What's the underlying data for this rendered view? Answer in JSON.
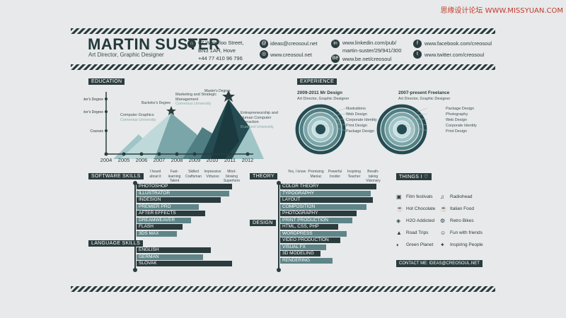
{
  "watermark": "思缘设计论坛 WWW.MISSYUAN.COM",
  "header": {
    "name": "MARTIN SUSTER",
    "role": "Art Director, Graphic Designer",
    "address": [
      "67 Waterloo Street,",
      "BN3 1AH, Hove",
      "+44 77 410 96 796"
    ],
    "email": "ideas@creosoul.net",
    "web": "www.creosoul.net",
    "linkedin": [
      "www.linkedin.com/pub/",
      "martin-suster/29/941/300"
    ],
    "behance": "www.be.net/creosoul",
    "facebook": "www.facebook.com/creosoul",
    "twitter": "www.twitter.com/creosoul"
  },
  "education": {
    "label": "EDUCATION",
    "y_labels": [
      "Master's Degree",
      "Bachelor's Degree",
      "Courses"
    ],
    "years": [
      "2004",
      "2005",
      "2006",
      "2007",
      "2008",
      "2009",
      "2010",
      "2011",
      "2012"
    ],
    "annotations": {
      "bachelor": "Bachelor's Degree",
      "master": "Master's Degree",
      "computer_graphics": "Computer Graphics",
      "computer_graphics_sub": "Comenius University",
      "marketing": "Marketing and Strategic Management",
      "marketing_sub": "Comenius University",
      "entrepreneurship": "Entrepreneurship and Human Computer Interaction",
      "entrepreneurship_sub": "Bradford University"
    }
  },
  "experience": {
    "label": "EXPERIENCE",
    "job1_title": "2009-2011 Mr Design",
    "job1_role": "Art Director, Graphic Designer",
    "job1_items": [
      "Illustrations",
      "Web Design",
      "Corporate Identity",
      "Print Design",
      "Package Design"
    ],
    "job2_title": "2007-present Freelance",
    "job2_role": "Art Director, Graphic Designer",
    "job2_items": [
      "Package Design",
      "Photography",
      "Web Design",
      "Corporate Identity",
      "Print Design"
    ]
  },
  "software": {
    "label": "SOFTWARE SKILLS",
    "scale": [
      "I heard about it",
      "Fast-learning Talent",
      "Skilled Craftsman",
      "Impressive Virtuoso",
      "Mind-blowing Superhero"
    ],
    "items": [
      {
        "name": "PHOTOSHOP",
        "value": 95
      },
      {
        "name": "ILLUSTRATOR",
        "value": 92
      },
      {
        "name": "INDESIGN",
        "value": 84
      },
      {
        "name": "PREMIER PRO",
        "value": 62
      },
      {
        "name": "AFTER EFFECTS",
        "value": 68
      },
      {
        "name": "DREAMWEAVER",
        "value": 54
      },
      {
        "name": "FLASH",
        "value": 46
      },
      {
        "name": "3DS MAX",
        "value": 40
      }
    ]
  },
  "language": {
    "label": "LANGUAGE SKILLS",
    "items": [
      {
        "name": "ENGLISH",
        "value": 74
      },
      {
        "name": "GERMAN",
        "value": 66
      },
      {
        "name": "SLOVAK",
        "value": 95
      }
    ]
  },
  "theory": {
    "label": "THEORY",
    "scale": [
      "Yes, I know",
      "Promising Maniac",
      "Powerful Insider",
      "Inspiring Teacher",
      "Breath-taking Visionary"
    ],
    "items": [
      {
        "name": "COLOR THEORY",
        "value": 96
      },
      {
        "name": "TYPOGRAPHY",
        "value": 90
      },
      {
        "name": "LAYOUT",
        "value": 92
      },
      {
        "name": "COMPOSITION",
        "value": 86
      }
    ]
  },
  "design": {
    "label": "DESIGN",
    "items": [
      {
        "name": "PHOTOGRAPHY",
        "value": 76
      },
      {
        "name": "PRINT PRODUCTION",
        "value": 72
      },
      {
        "name": "HTML, CSS, PHP",
        "value": 58
      },
      {
        "name": "WORDPRESS",
        "value": 66
      },
      {
        "name": "VIDEO PRODUCTION",
        "value": 60
      },
      {
        "name": "VISUAL FX",
        "value": 46
      },
      {
        "name": "3D MODELING",
        "value": 40
      },
      {
        "name": "RENDERING",
        "value": 52
      }
    ]
  },
  "things": {
    "label": "THINGS I ♡",
    "left": [
      "Film festivals",
      "Hot Chocolate",
      "H2O Addicted",
      "Road Trips",
      "Green Planet"
    ],
    "right": [
      "Radiohead",
      "Italian Food",
      "Retro Bikes",
      "Fun with friends",
      "Inspiring People"
    ],
    "contact": "CONTACT ME: IDEAS@CREOSOUL.NET"
  }
}
